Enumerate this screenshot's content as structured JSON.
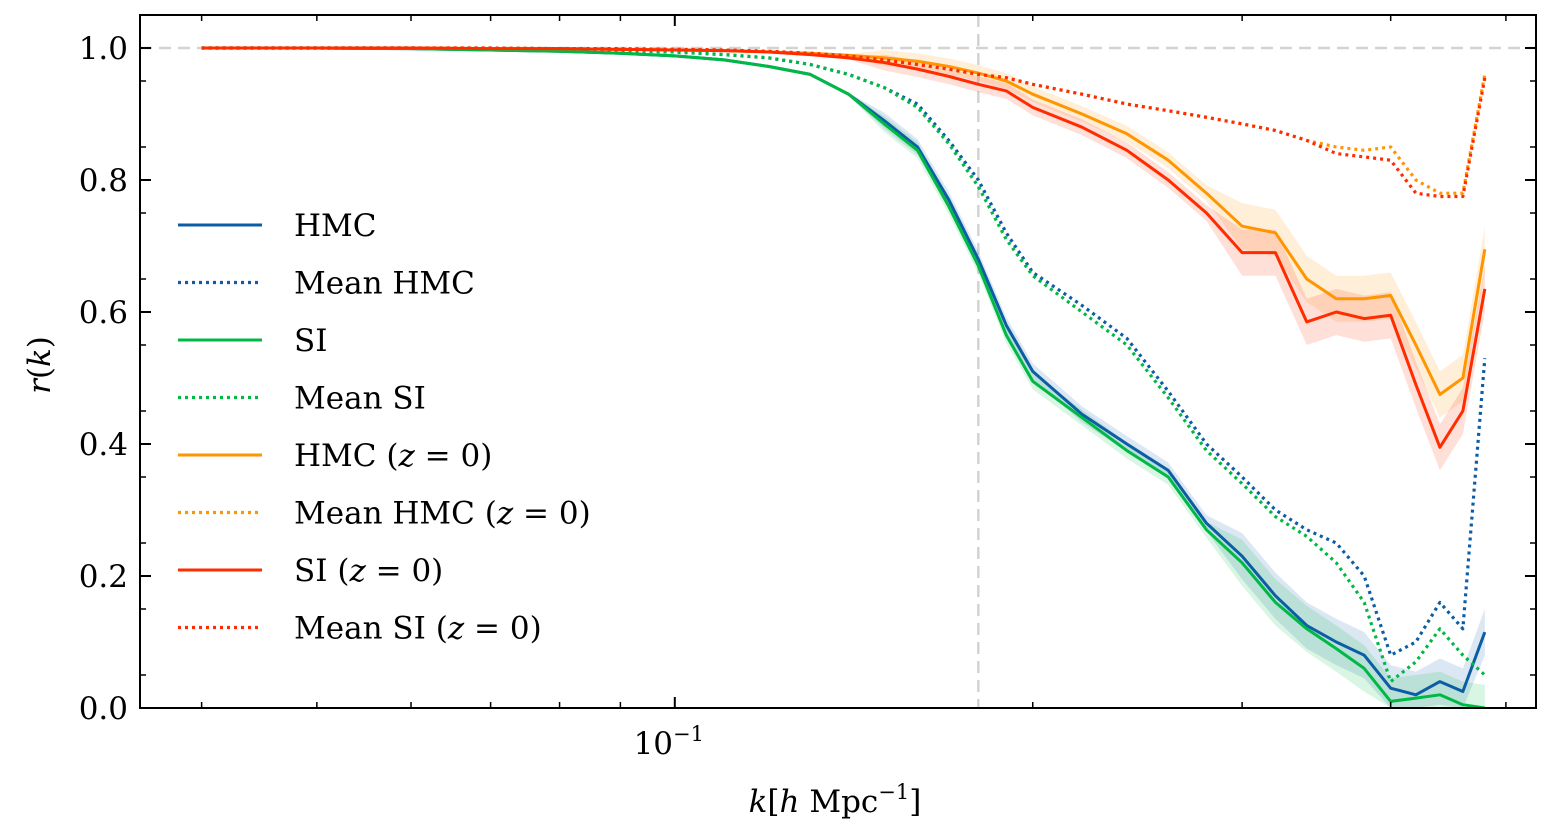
{
  "chart_data": {
    "type": "line",
    "title": "",
    "xlabel": "k[h Mpc^-1]",
    "ylabel": "r(k)",
    "xscale": "log",
    "xlim": [
      0.0355,
      0.53
    ],
    "ylim": [
      0.0,
      1.05
    ],
    "x_ticks": [
      {
        "value": 0.1,
        "base": "10",
        "exp": "−1"
      }
    ],
    "y_ticks": [
      {
        "value": 0.0,
        "label": "0.0"
      },
      {
        "value": 0.2,
        "label": "0.2"
      },
      {
        "value": 0.4,
        "label": "0.4"
      },
      {
        "value": 0.6,
        "label": "0.6"
      },
      {
        "value": 0.8,
        "label": "0.8"
      },
      {
        "value": 1.0,
        "label": "1.0"
      }
    ],
    "reference_lines": [
      {
        "axis": "y",
        "value": 1.0,
        "style": "dashed",
        "color": "#d3d3d3"
      },
      {
        "axis": "x",
        "value": 0.18,
        "style": "dashed",
        "color": "#d3d3d3"
      }
    ],
    "legend_position": "center-left",
    "x": [
      0.04,
      0.05,
      0.06,
      0.07,
      0.08,
      0.09,
      0.1,
      0.11,
      0.12,
      0.13,
      0.14,
      0.15,
      0.16,
      0.17,
      0.18,
      0.19,
      0.2,
      0.22,
      0.24,
      0.26,
      0.28,
      0.3,
      0.32,
      0.34,
      0.36,
      0.38,
      0.4,
      0.42,
      0.44,
      0.46,
      0.48
    ],
    "series": [
      {
        "name": "HMC",
        "label_main": "HMC",
        "label_math": "",
        "color": "#0c5da5",
        "style": "solid",
        "band": true,
        "values": [
          1.0,
          1.0,
          0.999,
          0.997,
          0.995,
          0.992,
          0.988,
          0.982,
          0.972,
          0.96,
          0.93,
          0.89,
          0.85,
          0.77,
          0.68,
          0.58,
          0.51,
          0.445,
          0.4,
          0.36,
          0.28,
          0.23,
          0.17,
          0.125,
          0.1,
          0.08,
          0.03,
          0.02,
          0.04,
          0.025,
          0.115
        ]
      },
      {
        "name": "Mean HMC",
        "label_main": "Mean HMC",
        "label_math": "",
        "color": "#0c5da5",
        "style": "dotted",
        "band": false,
        "values": [
          1.0,
          1.0,
          1.0,
          0.999,
          0.998,
          0.996,
          0.994,
          0.99,
          0.985,
          0.975,
          0.96,
          0.94,
          0.915,
          0.86,
          0.8,
          0.72,
          0.66,
          0.61,
          0.56,
          0.48,
          0.4,
          0.35,
          0.3,
          0.27,
          0.25,
          0.2,
          0.08,
          0.1,
          0.16,
          0.12,
          0.53
        ]
      },
      {
        "name": "SI",
        "label_main": "SI",
        "label_math": "",
        "color": "#00b945",
        "style": "solid",
        "band": true,
        "values": [
          1.0,
          1.0,
          0.999,
          0.997,
          0.995,
          0.992,
          0.988,
          0.982,
          0.972,
          0.96,
          0.93,
          0.885,
          0.845,
          0.76,
          0.67,
          0.565,
          0.495,
          0.44,
          0.39,
          0.35,
          0.27,
          0.22,
          0.16,
          0.12,
          0.09,
          0.06,
          0.01,
          0.015,
          0.02,
          0.005,
          0.0
        ]
      },
      {
        "name": "Mean SI",
        "label_main": "Mean SI",
        "label_math": "",
        "color": "#00b945",
        "style": "dotted",
        "band": false,
        "values": [
          1.0,
          1.0,
          1.0,
          0.999,
          0.998,
          0.996,
          0.994,
          0.99,
          0.985,
          0.975,
          0.96,
          0.94,
          0.91,
          0.855,
          0.79,
          0.71,
          0.655,
          0.6,
          0.55,
          0.47,
          0.39,
          0.34,
          0.29,
          0.26,
          0.22,
          0.16,
          0.04,
          0.07,
          0.12,
          0.08,
          0.05
        ]
      },
      {
        "name": "HMC (z = 0)",
        "label_main": "HMC (",
        "label_math": "z",
        "label_tail": " = 0)",
        "color": "#ff9500",
        "style": "solid",
        "band": true,
        "values": [
          1.0,
          1.0,
          1.0,
          0.999,
          0.999,
          0.998,
          0.997,
          0.996,
          0.994,
          0.992,
          0.989,
          0.985,
          0.98,
          0.972,
          0.962,
          0.95,
          0.93,
          0.9,
          0.87,
          0.83,
          0.78,
          0.73,
          0.72,
          0.65,
          0.62,
          0.62,
          0.625,
          0.55,
          0.475,
          0.5,
          0.695
        ]
      },
      {
        "name": "Mean HMC (z = 0)",
        "label_main": "Mean HMC (",
        "label_math": "z",
        "label_tail": " = 0)",
        "color": "#ff9500",
        "style": "dotted",
        "band": false,
        "values": [
          1.0,
          1.0,
          1.0,
          1.0,
          0.999,
          0.999,
          0.998,
          0.997,
          0.995,
          0.992,
          0.988,
          0.982,
          0.975,
          0.968,
          0.96,
          0.955,
          0.945,
          0.93,
          0.915,
          0.905,
          0.895,
          0.885,
          0.875,
          0.86,
          0.85,
          0.845,
          0.85,
          0.8,
          0.78,
          0.78,
          0.96
        ]
      },
      {
        "name": "SI (z = 0)",
        "label_main": "SI (",
        "label_math": "z",
        "label_tail": " = 0)",
        "color": "#ff2c00",
        "style": "solid",
        "band": true,
        "values": [
          1.0,
          1.0,
          1.0,
          0.999,
          0.999,
          0.998,
          0.997,
          0.996,
          0.994,
          0.99,
          0.985,
          0.978,
          0.968,
          0.957,
          0.945,
          0.935,
          0.91,
          0.88,
          0.845,
          0.8,
          0.75,
          0.69,
          0.69,
          0.585,
          0.6,
          0.59,
          0.595,
          0.49,
          0.395,
          0.45,
          0.635
        ]
      },
      {
        "name": "Mean SI (z = 0)",
        "label_main": "Mean SI (",
        "label_math": "z",
        "label_tail": " = 0)",
        "color": "#ff2c00",
        "style": "dotted",
        "band": false,
        "values": [
          1.0,
          1.0,
          1.0,
          1.0,
          0.999,
          0.999,
          0.998,
          0.997,
          0.995,
          0.992,
          0.988,
          0.982,
          0.975,
          0.968,
          0.96,
          0.955,
          0.945,
          0.93,
          0.915,
          0.905,
          0.895,
          0.885,
          0.875,
          0.86,
          0.84,
          0.835,
          0.83,
          0.78,
          0.775,
          0.775,
          0.955
        ]
      }
    ]
  }
}
